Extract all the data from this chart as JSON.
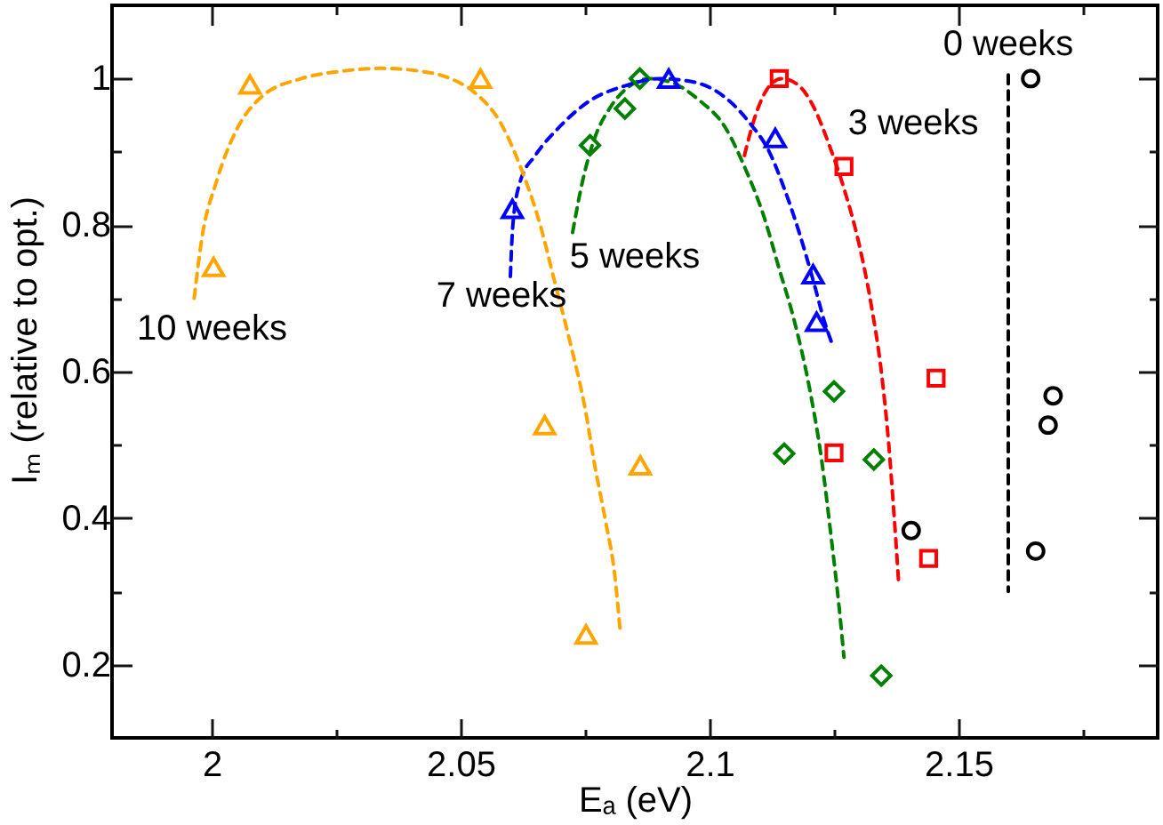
{
  "chart_data": {
    "type": "scatter",
    "xlabel": "Eₐ (eV)",
    "ylabel": "Iₘ (relative to opt.)",
    "xlim": [
      1.98,
      2.19
    ],
    "ylim": [
      0.1,
      1.1
    ],
    "xticks": [
      2,
      {
        "value": 2.025,
        "label": null
      },
      2.05,
      {
        "value": 2.075,
        "label": null
      },
      2.1,
      {
        "value": 2.125,
        "label": null
      },
      2.15,
      {
        "value": 2.175,
        "label": null
      }
    ],
    "yticks": [
      0.2,
      {
        "value": 0.3,
        "label": null
      },
      0.4,
      {
        "value": 0.5,
        "label": null
      },
      0.6,
      {
        "value": 0.7,
        "label": null
      },
      0.8,
      {
        "value": 0.9,
        "label": null
      },
      1
    ],
    "series": [
      {
        "type": "line",
        "name": "0 weeks",
        "color": "#000000",
        "line_style": "dashed",
        "x": [
          2.16,
          2.16
        ],
        "values": [
          1.005,
          0.3
        ]
      },
      {
        "color": "#000000",
        "marker": "circle",
        "x": [
          2.1645,
          2.169,
          2.168,
          2.1405,
          2.1655
        ],
        "values": [
          1.0,
          0.567,
          0.527,
          0.383,
          0.355
        ]
      },
      {
        "type": "line",
        "name": "3 weeks",
        "color": "#ff0000",
        "line_style": "dashed",
        "x": [
          2.107,
          2.109,
          2.1115,
          2.1145,
          2.118,
          2.121,
          2.124,
          2.127,
          2.13,
          2.1325,
          2.1345,
          2.136,
          2.137,
          2.138
        ],
        "values": [
          0.895,
          0.945,
          0.985,
          1.0,
          0.99,
          0.96,
          0.91,
          0.85,
          0.775,
          0.69,
          0.6,
          0.5,
          0.41,
          0.31
        ]
      },
      {
        "color": "#ff0000",
        "marker": "square",
        "x": [
          2.114,
          2.127,
          2.1455,
          2.125,
          2.144
        ],
        "values": [
          1.0,
          0.88,
          0.591,
          0.489,
          0.345
        ]
      },
      {
        "type": "line",
        "name": "5 weeks",
        "color": "#008000",
        "line_style": "dashed",
        "x": [
          2.0725,
          2.0745,
          2.077,
          2.08,
          2.084,
          2.088,
          2.093,
          2.098,
          2.103,
          2.107,
          2.111,
          2.114,
          2.117,
          2.12,
          2.1225,
          2.1245,
          2.126,
          2.127
        ],
        "values": [
          0.79,
          0.86,
          0.92,
          0.96,
          0.99,
          1.0,
          0.993,
          0.97,
          0.935,
          0.88,
          0.81,
          0.74,
          0.67,
          0.58,
          0.48,
          0.37,
          0.28,
          0.21
        ]
      },
      {
        "color": "#008000",
        "marker": "diamond",
        "x": [
          2.076,
          2.083,
          2.086,
          2.125,
          2.115,
          2.133,
          2.1345
        ],
        "values": [
          0.909,
          0.959,
          1.0,
          0.573,
          0.488,
          0.48,
          0.185
        ]
      },
      {
        "type": "line",
        "name": "7 weeks",
        "color": "#0000ff",
        "line_style": "dashed",
        "x": [
          2.06,
          2.0605,
          2.062,
          2.065,
          2.07,
          2.076,
          2.083,
          2.09,
          2.097,
          2.103,
          2.108,
          2.112,
          2.115,
          2.118,
          2.121,
          2.123,
          2.1245
        ],
        "values": [
          0.73,
          0.8,
          0.86,
          0.895,
          0.935,
          0.97,
          0.99,
          1.0,
          0.995,
          0.975,
          0.94,
          0.9,
          0.85,
          0.79,
          0.72,
          0.67,
          0.64
        ]
      },
      {
        "color": "#0000ff",
        "marker": "triangle",
        "x": [
          2.0604,
          2.0918,
          2.1132,
          2.1208,
          2.1215
        ],
        "values": [
          0.822,
          1.0,
          0.919,
          0.733,
          0.668
        ]
      },
      {
        "type": "line",
        "name": "10 weeks",
        "color": "#ffa500",
        "line_style": "dashed",
        "x": [
          1.9965,
          1.998,
          2.001,
          2.005,
          2.01,
          2.018,
          2.026,
          2.034,
          2.042,
          2.048,
          2.053,
          2.058,
          2.062,
          2.066,
          2.069,
          2.072,
          2.075,
          2.077,
          2.079,
          2.081,
          2.082
        ],
        "values": [
          0.7,
          0.78,
          0.86,
          0.93,
          0.975,
          1.0,
          1.01,
          1.014,
          1.01,
          1.0,
          0.98,
          0.94,
          0.88,
          0.8,
          0.72,
          0.64,
          0.55,
          0.47,
          0.4,
          0.32,
          0.25
        ]
      },
      {
        "color": "#ffa500",
        "marker": "triangle",
        "x": [
          2.0004,
          2.0077,
          2.054,
          2.0669,
          2.0861,
          2.0752
        ],
        "values": [
          0.743,
          0.992,
          1.0,
          0.527,
          0.472,
          0.241
        ]
      }
    ]
  }
}
